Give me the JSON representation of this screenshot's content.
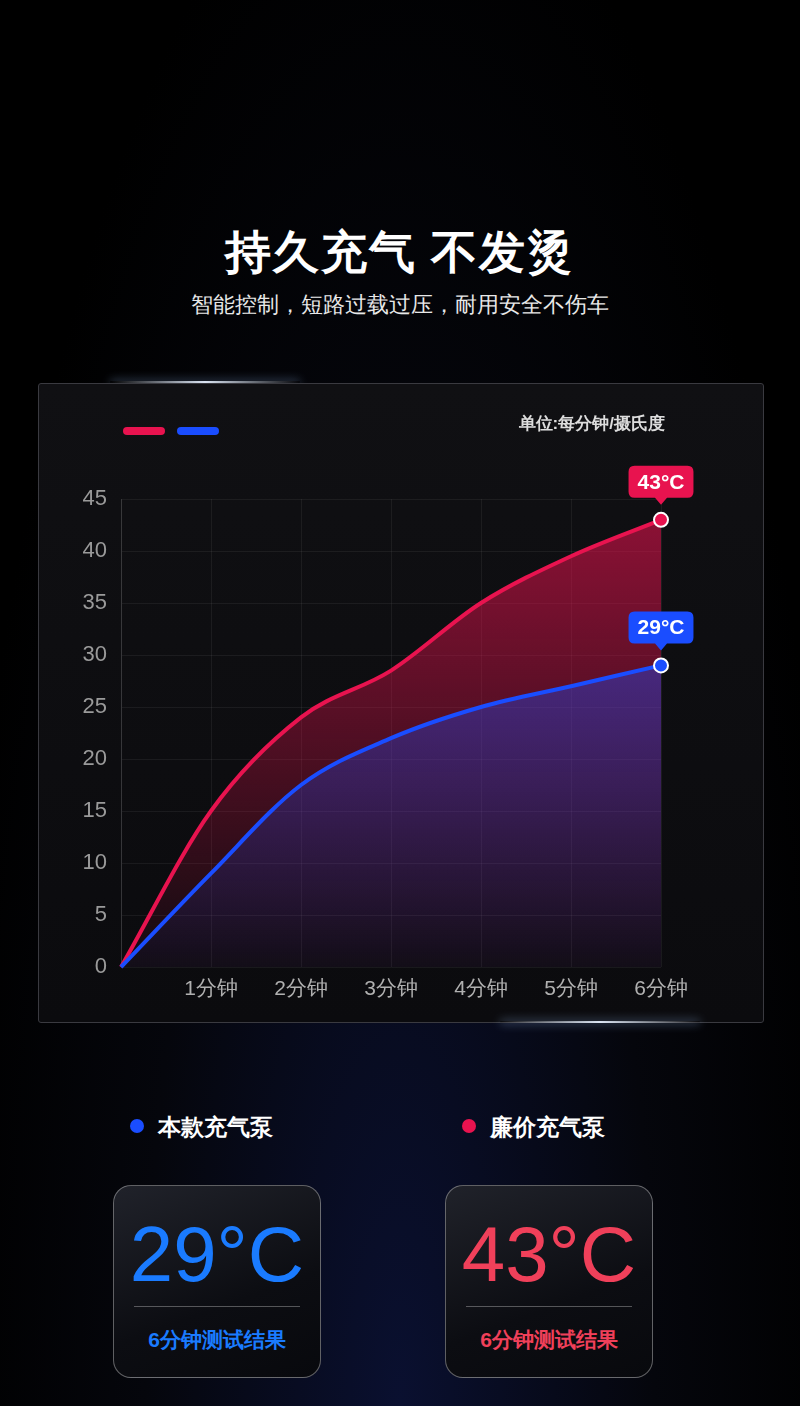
{
  "header": {
    "title": "持久充气 不发烫",
    "subtitle": "智能控制，短路过载过压，耐用安全不伤车"
  },
  "chart_data": {
    "type": "line",
    "ylabel": "单位:每分钟/摄氏度",
    "categories": [
      null,
      "1分钟",
      "2分钟",
      "3分钟",
      "4分钟",
      "5分钟",
      "6分钟"
    ],
    "series": [
      {
        "name": "本款充气泵",
        "color": "#1a4dff",
        "values": [
          0,
          9,
          17.5,
          22,
          25,
          27,
          29
        ],
        "value_labels": [
          null,
          null,
          null,
          null,
          null,
          null,
          "29°C"
        ]
      },
      {
        "name": "廉价充气泵",
        "color": "#e8134f",
        "values": [
          0,
          15,
          24,
          28.5,
          35,
          39.5,
          43
        ],
        "value_labels": [
          null,
          null,
          null,
          null,
          null,
          null,
          "43°C"
        ]
      }
    ],
    "ylim": [
      0,
      45
    ],
    "yticks": [
      0,
      5,
      10,
      15,
      20,
      25,
      30,
      35,
      40,
      45
    ],
    "grid": true,
    "legend": "bottom",
    "data_labels": true
  },
  "results": [
    {
      "value_text": "29°C",
      "caption": "6分钟测试结果",
      "color": "#1a7bff"
    },
    {
      "value_text": "43°C",
      "caption": "6分钟测试结果",
      "color": "#f0405a"
    }
  ]
}
